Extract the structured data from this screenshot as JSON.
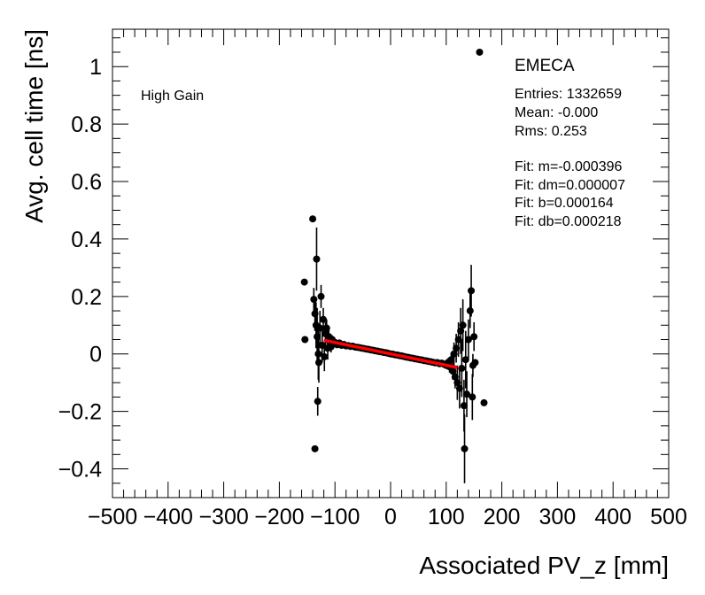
{
  "chart_data": {
    "type": "scatter",
    "xlabel": "Associated PV_z [mm]",
    "ylabel": "Avg. cell time [ns]",
    "xlim": [
      -500,
      500
    ],
    "ylim": [
      -0.5,
      1.13
    ],
    "xticks": [
      -500,
      -400,
      -300,
      -200,
      -100,
      0,
      100,
      200,
      300,
      400,
      500
    ],
    "xtick_labels": [
      "−500",
      "−400",
      "−300",
      "−200",
      "−100",
      "0",
      "100",
      "200",
      "300",
      "400",
      "500"
    ],
    "yticks": [
      -0.4,
      -0.2,
      0,
      0.2,
      0.4,
      0.6,
      0.8,
      1
    ],
    "ytick_labels": [
      "−0.4",
      "−0.2",
      "0",
      "0.2",
      "0.4",
      "0.6",
      "0.8",
      "1"
    ],
    "grid": false,
    "annotations": {
      "label_left": "High Gain",
      "detector": "EMECA",
      "stats": [
        "Entries: 1332659",
        "Mean: -0.000",
        "Rms: 0.253"
      ],
      "fit": [
        "Fit: m=-0.000396",
        "Fit: dm=0.000007",
        "Fit: b=0.000164",
        "Fit: db=0.000218"
      ]
    },
    "fit_line": {
      "m": -0.000396,
      "b": 0.000164,
      "x_range": [
        -120,
        120
      ],
      "color": "#ff0000"
    },
    "marker_color": "#000000",
    "points": [
      {
        "x": -155,
        "y": 0.25,
        "err": 0.0
      },
      {
        "x": -154,
        "y": 0.05,
        "err": 0.0
      },
      {
        "x": -140,
        "y": 0.47,
        "err": 0.0
      },
      {
        "x": -136,
        "y": -0.33,
        "err": 0.0
      },
      {
        "x": -133,
        "y": 0.33,
        "err": 0.11
      },
      {
        "x": -131,
        "y": -0.165,
        "err": 0.05
      },
      {
        "x": -138,
        "y": 0.19,
        "err": 0.04
      },
      {
        "x": -136,
        "y": 0.14,
        "err": 0.06
      },
      {
        "x": -134,
        "y": 0.1,
        "err": 0.08
      },
      {
        "x": -132,
        "y": 0.06,
        "err": 0.1
      },
      {
        "x": -130,
        "y": 0.0,
        "err": 0.09
      },
      {
        "x": -129,
        "y": -0.03,
        "err": 0.07
      },
      {
        "x": -127,
        "y": 0.09,
        "err": 0.06
      },
      {
        "x": -125,
        "y": 0.2,
        "err": 0.04
      },
      {
        "x": -123,
        "y": 0.03,
        "err": 0.06
      },
      {
        "x": -121,
        "y": 0.12,
        "err": 0.04
      },
      {
        "x": -119,
        "y": -0.01,
        "err": 0.05
      },
      {
        "x": -117,
        "y": 0.07,
        "err": 0.04
      },
      {
        "x": -115,
        "y": 0.09,
        "err": 0.03
      },
      {
        "x": -113,
        "y": 0.02,
        "err": 0.04
      },
      {
        "x": -111,
        "y": 0.06,
        "err": 0.03
      },
      {
        "x": -109,
        "y": 0.04,
        "err": 0.025
      },
      {
        "x": -107,
        "y": 0.025,
        "err": 0.02
      },
      {
        "x": -105,
        "y": 0.05,
        "err": 0.015
      },
      {
        "x": -103,
        "y": 0.035,
        "err": 0.012
      },
      {
        "x": -100,
        "y": 0.04,
        "err": 0.01
      },
      {
        "x": -96,
        "y": 0.032,
        "err": 0.008
      },
      {
        "x": -92,
        "y": 0.038,
        "err": 0.007
      },
      {
        "x": -88,
        "y": 0.03,
        "err": 0.006
      },
      {
        "x": -84,
        "y": 0.033,
        "err": 0.005
      },
      {
        "x": -80,
        "y": 0.028,
        "err": 0.005
      },
      {
        "x": -76,
        "y": 0.029,
        "err": 0.004
      },
      {
        "x": -72,
        "y": 0.026,
        "err": 0.004
      },
      {
        "x": -68,
        "y": 0.027,
        "err": 0.004
      },
      {
        "x": -64,
        "y": 0.024,
        "err": 0.003
      },
      {
        "x": -60,
        "y": 0.023,
        "err": 0.003
      },
      {
        "x": -56,
        "y": 0.022,
        "err": 0.003
      },
      {
        "x": -52,
        "y": 0.02,
        "err": 0.003
      },
      {
        "x": -48,
        "y": 0.019,
        "err": 0.003
      },
      {
        "x": -44,
        "y": 0.017,
        "err": 0.003
      },
      {
        "x": -40,
        "y": 0.016,
        "err": 0.003
      },
      {
        "x": -36,
        "y": 0.014,
        "err": 0.003
      },
      {
        "x": -32,
        "y": 0.013,
        "err": 0.003
      },
      {
        "x": -28,
        "y": 0.011,
        "err": 0.003
      },
      {
        "x": -24,
        "y": 0.01,
        "err": 0.003
      },
      {
        "x": -20,
        "y": 0.008,
        "err": 0.003
      },
      {
        "x": -16,
        "y": 0.007,
        "err": 0.003
      },
      {
        "x": -12,
        "y": 0.005,
        "err": 0.003
      },
      {
        "x": -8,
        "y": 0.004,
        "err": 0.003
      },
      {
        "x": -4,
        "y": 0.002,
        "err": 0.003
      },
      {
        "x": 0,
        "y": 0.0,
        "err": 0.003
      },
      {
        "x": 4,
        "y": -0.001,
        "err": 0.003
      },
      {
        "x": 8,
        "y": -0.003,
        "err": 0.003
      },
      {
        "x": 12,
        "y": -0.004,
        "err": 0.003
      },
      {
        "x": 16,
        "y": -0.006,
        "err": 0.003
      },
      {
        "x": 20,
        "y": -0.007,
        "err": 0.003
      },
      {
        "x": 24,
        "y": -0.009,
        "err": 0.003
      },
      {
        "x": 28,
        "y": -0.011,
        "err": 0.003
      },
      {
        "x": 32,
        "y": -0.012,
        "err": 0.003
      },
      {
        "x": 36,
        "y": -0.014,
        "err": 0.003
      },
      {
        "x": 40,
        "y": -0.015,
        "err": 0.003
      },
      {
        "x": 44,
        "y": -0.017,
        "err": 0.003
      },
      {
        "x": 48,
        "y": -0.018,
        "err": 0.003
      },
      {
        "x": 52,
        "y": -0.02,
        "err": 0.003
      },
      {
        "x": 56,
        "y": -0.021,
        "err": 0.003
      },
      {
        "x": 60,
        "y": -0.023,
        "err": 0.003
      },
      {
        "x": 64,
        "y": -0.024,
        "err": 0.004
      },
      {
        "x": 68,
        "y": -0.026,
        "err": 0.004
      },
      {
        "x": 72,
        "y": -0.027,
        "err": 0.004
      },
      {
        "x": 76,
        "y": -0.029,
        "err": 0.004
      },
      {
        "x": 80,
        "y": -0.031,
        "err": 0.005
      },
      {
        "x": 84,
        "y": -0.03,
        "err": 0.006
      },
      {
        "x": 88,
        "y": -0.034,
        "err": 0.007
      },
      {
        "x": 92,
        "y": -0.032,
        "err": 0.008
      },
      {
        "x": 96,
        "y": -0.036,
        "err": 0.01
      },
      {
        "x": 100,
        "y": -0.04,
        "err": 0.012
      },
      {
        "x": 103,
        "y": -0.03,
        "err": 0.015
      },
      {
        "x": 106,
        "y": -0.045,
        "err": 0.02
      },
      {
        "x": 109,
        "y": -0.02,
        "err": 0.025
      },
      {
        "x": 112,
        "y": -0.06,
        "err": 0.03
      },
      {
        "x": 114,
        "y": 0.0,
        "err": 0.04
      },
      {
        "x": 116,
        "y": -0.08,
        "err": 0.04
      },
      {
        "x": 118,
        "y": 0.02,
        "err": 0.05
      },
      {
        "x": 120,
        "y": -0.1,
        "err": 0.06
      },
      {
        "x": 122,
        "y": 0.05,
        "err": 0.06
      },
      {
        "x": 124,
        "y": -0.12,
        "err": 0.07
      },
      {
        "x": 126,
        "y": 0.08,
        "err": 0.08
      },
      {
        "x": 128,
        "y": -0.05,
        "err": 0.1
      },
      {
        "x": 130,
        "y": 0.1,
        "err": 0.09
      },
      {
        "x": 132,
        "y": -0.18,
        "err": 0.09
      },
      {
        "x": 133,
        "y": -0.33,
        "err": 0.12
      },
      {
        "x": 135,
        "y": -0.02,
        "err": 0.1
      },
      {
        "x": 137,
        "y": -0.14,
        "err": 0.08
      },
      {
        "x": 140,
        "y": 0.05,
        "err": 0.07
      },
      {
        "x": 143,
        "y": 0.15,
        "err": 0.06
      },
      {
        "x": 145,
        "y": 0.22,
        "err": 0.09
      },
      {
        "x": 147,
        "y": -0.15,
        "err": 0.08
      },
      {
        "x": 148,
        "y": -0.04,
        "err": 0.04
      },
      {
        "x": 150,
        "y": 0.06,
        "err": 0.05
      },
      {
        "x": 152,
        "y": -0.03,
        "err": 0.0
      },
      {
        "x": 160,
        "y": 1.05,
        "err": 0.0
      },
      {
        "x": 168,
        "y": -0.17,
        "err": 0.0
      }
    ]
  }
}
